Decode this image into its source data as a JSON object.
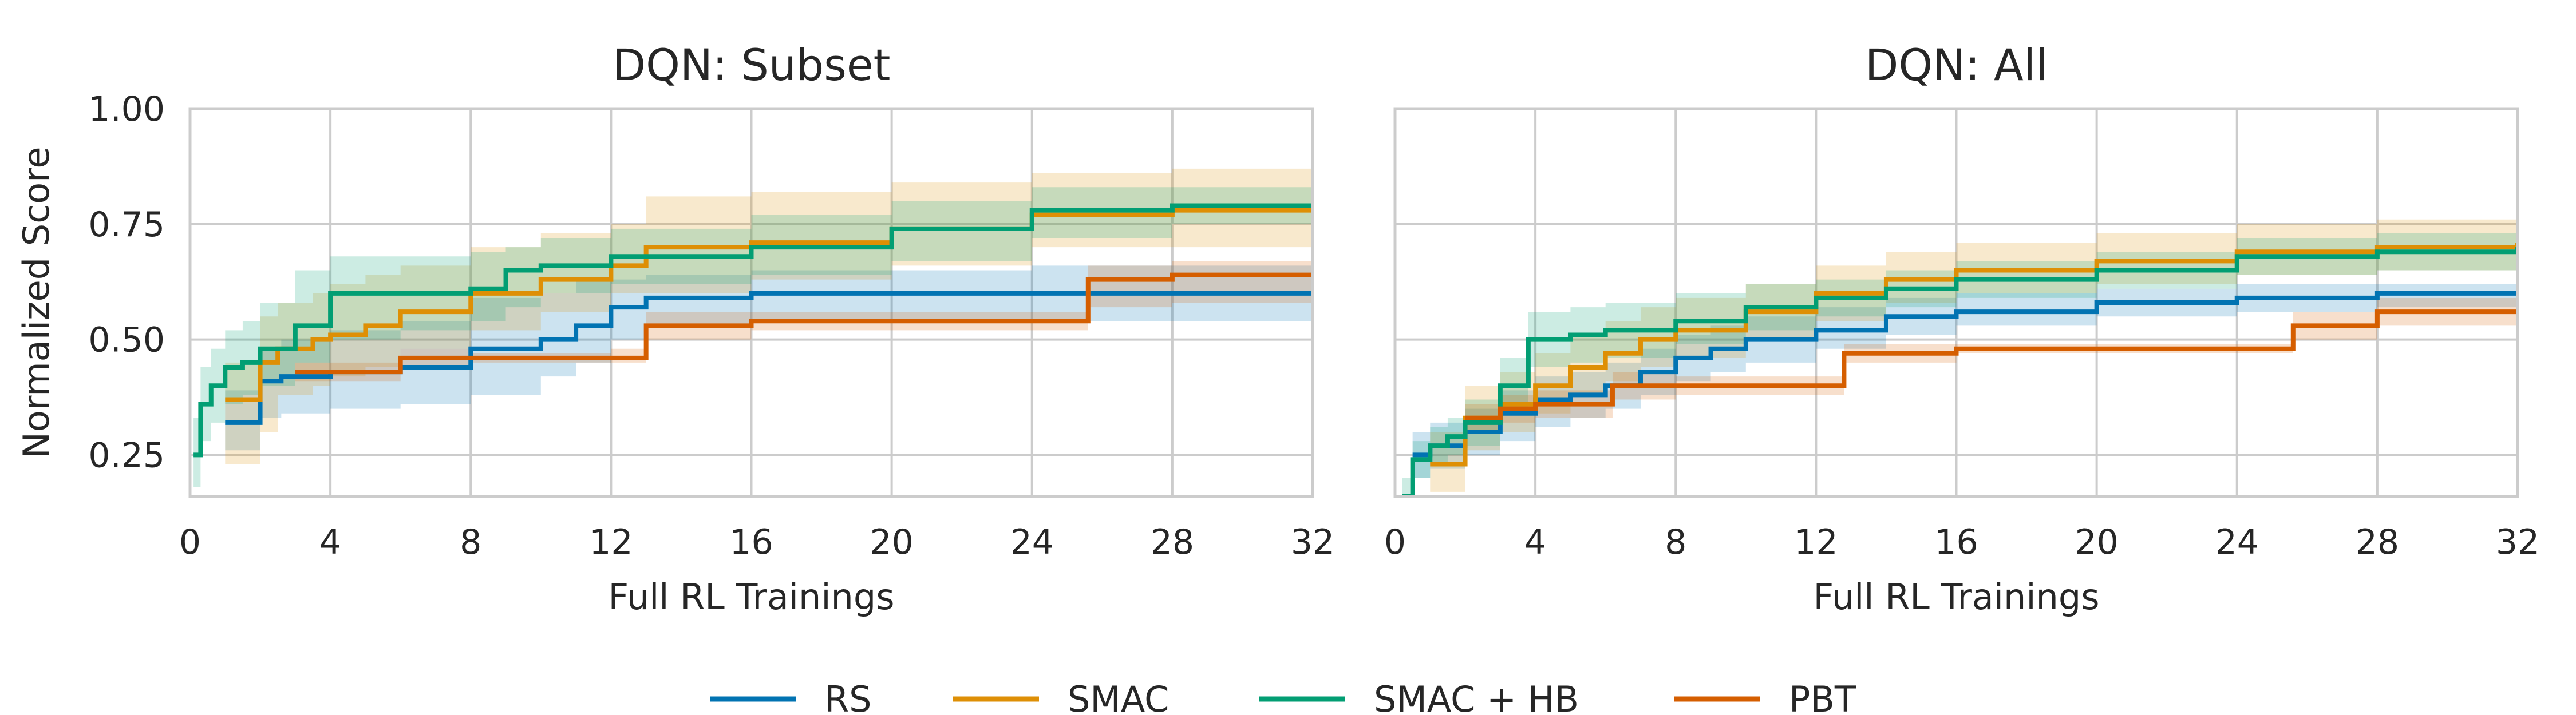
{
  "chart_data": [
    {
      "type": "line",
      "title": "DQN: Subset",
      "xlabel": "Full RL Trainings",
      "ylabel": "Normalized Score",
      "xlim": [
        0,
        32
      ],
      "ylim": [
        0.16,
        1.0
      ],
      "xticks": [
        "0",
        "4",
        "8",
        "12",
        "16",
        "20",
        "24",
        "28",
        "32"
      ],
      "yticks": [
        "0.25",
        "0.50",
        "0.75",
        "1.00"
      ],
      "grid": true,
      "series": [
        {
          "name": "RS",
          "color": "#0173b2",
          "x": [
            1,
            2,
            2.6,
            4,
            6,
            8,
            10,
            11,
            12,
            13,
            16,
            24,
            32
          ],
          "y": [
            0.32,
            0.41,
            0.42,
            0.43,
            0.44,
            0.48,
            0.5,
            0.53,
            0.57,
            0.59,
            0.6,
            0.6,
            0.6
          ],
          "lower": [
            0.26,
            0.33,
            0.34,
            0.35,
            0.36,
            0.38,
            0.42,
            0.45,
            0.5,
            0.53,
            0.54,
            0.54,
            0.55
          ],
          "upper": [
            0.39,
            0.48,
            0.5,
            0.52,
            0.54,
            0.59,
            0.6,
            0.63,
            0.63,
            0.64,
            0.65,
            0.66,
            0.66
          ]
        },
        {
          "name": "SMAC",
          "color": "#de8f05",
          "x": [
            1,
            2,
            2.5,
            3.5,
            4,
            5,
            6,
            8,
            10,
            12,
            13,
            16,
            20,
            24,
            28,
            32
          ],
          "y": [
            0.37,
            0.45,
            0.48,
            0.5,
            0.51,
            0.53,
            0.56,
            0.6,
            0.63,
            0.66,
            0.7,
            0.71,
            0.74,
            0.77,
            0.78,
            0.79
          ],
          "lower": [
            0.23,
            0.3,
            0.38,
            0.4,
            0.42,
            0.44,
            0.48,
            0.52,
            0.56,
            0.6,
            0.6,
            0.63,
            0.66,
            0.7,
            0.7,
            0.7
          ],
          "upper": [
            0.45,
            0.55,
            0.58,
            0.6,
            0.62,
            0.64,
            0.66,
            0.7,
            0.73,
            0.75,
            0.81,
            0.82,
            0.84,
            0.86,
            0.87,
            0.88
          ]
        },
        {
          "name": "SMAC + HB",
          "color": "#029e73",
          "x": [
            0.1,
            0.3,
            0.6,
            1,
            1.5,
            2,
            3,
            4,
            6,
            8,
            9,
            10,
            12,
            16,
            20,
            24,
            28,
            32
          ],
          "y": [
            0.25,
            0.36,
            0.4,
            0.44,
            0.45,
            0.48,
            0.53,
            0.6,
            0.6,
            0.61,
            0.65,
            0.66,
            0.68,
            0.7,
            0.74,
            0.78,
            0.79,
            0.79
          ],
          "lower": [
            0.18,
            0.28,
            0.32,
            0.36,
            0.38,
            0.4,
            0.45,
            0.5,
            0.52,
            0.54,
            0.57,
            0.6,
            0.62,
            0.64,
            0.67,
            0.72,
            0.75,
            0.75
          ],
          "upper": [
            0.33,
            0.44,
            0.48,
            0.52,
            0.54,
            0.58,
            0.65,
            0.68,
            0.68,
            0.69,
            0.7,
            0.72,
            0.74,
            0.77,
            0.8,
            0.83,
            0.83,
            0.84
          ]
        },
        {
          "name": "PBT",
          "color": "#d55e00",
          "x": [
            3,
            6,
            8,
            12,
            13,
            16,
            25.6,
            28,
            32
          ],
          "y": [
            0.43,
            0.46,
            0.46,
            0.46,
            0.53,
            0.54,
            0.63,
            0.64,
            0.64
          ],
          "lower": [
            0.41,
            0.44,
            0.45,
            0.45,
            0.5,
            0.52,
            0.57,
            0.58,
            0.58
          ],
          "upper": [
            0.45,
            0.48,
            0.47,
            0.48,
            0.56,
            0.56,
            0.66,
            0.67,
            0.67
          ]
        }
      ]
    },
    {
      "type": "line",
      "title": "DQN: All",
      "xlabel": "Full RL Trainings",
      "ylabel": "",
      "xlim": [
        0,
        32
      ],
      "ylim": [
        0.16,
        1.0
      ],
      "xticks": [
        "0",
        "4",
        "8",
        "12",
        "16",
        "20",
        "24",
        "28",
        "32"
      ],
      "yticks": [],
      "grid": true,
      "series": [
        {
          "name": "RS",
          "color": "#0173b2",
          "x": [
            0.5,
            1,
            2,
            3,
            4,
            5,
            6,
            7,
            8,
            9,
            10,
            12,
            14,
            16,
            20,
            24,
            28,
            32
          ],
          "y": [
            0.25,
            0.27,
            0.3,
            0.34,
            0.37,
            0.38,
            0.4,
            0.43,
            0.46,
            0.48,
            0.5,
            0.52,
            0.55,
            0.56,
            0.58,
            0.59,
            0.6,
            0.6
          ],
          "lower": [
            0.2,
            0.22,
            0.25,
            0.28,
            0.31,
            0.33,
            0.35,
            0.38,
            0.41,
            0.43,
            0.45,
            0.48,
            0.51,
            0.53,
            0.55,
            0.56,
            0.57,
            0.58
          ],
          "upper": [
            0.3,
            0.32,
            0.35,
            0.39,
            0.42,
            0.43,
            0.45,
            0.48,
            0.51,
            0.53,
            0.55,
            0.57,
            0.59,
            0.6,
            0.61,
            0.62,
            0.62,
            0.63
          ]
        },
        {
          "name": "SMAC",
          "color": "#de8f05",
          "x": [
            1,
            2,
            3,
            4,
            5,
            6,
            7,
            8,
            10,
            12,
            14,
            16,
            20,
            24,
            28,
            32
          ],
          "y": [
            0.23,
            0.33,
            0.36,
            0.4,
            0.44,
            0.47,
            0.5,
            0.52,
            0.56,
            0.6,
            0.63,
            0.65,
            0.67,
            0.69,
            0.7,
            0.71
          ],
          "lower": [
            0.17,
            0.26,
            0.3,
            0.34,
            0.38,
            0.41,
            0.44,
            0.46,
            0.5,
            0.54,
            0.58,
            0.6,
            0.62,
            0.64,
            0.65,
            0.66
          ],
          "upper": [
            0.3,
            0.4,
            0.43,
            0.47,
            0.51,
            0.54,
            0.57,
            0.59,
            0.62,
            0.66,
            0.69,
            0.71,
            0.73,
            0.75,
            0.76,
            0.77
          ]
        },
        {
          "name": "SMAC + HB",
          "color": "#029e73",
          "x": [
            0.2,
            0.5,
            1,
            1.5,
            2,
            3,
            3.8,
            5,
            6,
            8,
            10,
            12,
            14,
            16,
            20,
            24,
            28,
            32
          ],
          "y": [
            0.16,
            0.24,
            0.27,
            0.29,
            0.32,
            0.4,
            0.5,
            0.51,
            0.52,
            0.54,
            0.57,
            0.59,
            0.61,
            0.63,
            0.65,
            0.68,
            0.69,
            0.7
          ],
          "lower": [
            0.12,
            0.2,
            0.23,
            0.25,
            0.27,
            0.34,
            0.44,
            0.45,
            0.46,
            0.49,
            0.52,
            0.55,
            0.57,
            0.59,
            0.61,
            0.64,
            0.65,
            0.66
          ],
          "upper": [
            0.2,
            0.28,
            0.31,
            0.33,
            0.37,
            0.46,
            0.56,
            0.57,
            0.58,
            0.6,
            0.62,
            0.63,
            0.65,
            0.67,
            0.69,
            0.72,
            0.73,
            0.74
          ]
        },
        {
          "name": "PBT",
          "color": "#d55e00",
          "x": [
            2,
            3,
            4,
            6.2,
            8,
            12.8,
            16,
            25.6,
            28,
            32
          ],
          "y": [
            0.33,
            0.35,
            0.36,
            0.4,
            0.4,
            0.47,
            0.48,
            0.53,
            0.56,
            0.56
          ],
          "lower": [
            0.3,
            0.32,
            0.33,
            0.37,
            0.38,
            0.45,
            0.47,
            0.5,
            0.53,
            0.53
          ],
          "upper": [
            0.36,
            0.38,
            0.39,
            0.43,
            0.42,
            0.49,
            0.49,
            0.56,
            0.59,
            0.59
          ]
        }
      ]
    }
  ],
  "legend": {
    "items": [
      {
        "label": "RS",
        "color": "#0173b2"
      },
      {
        "label": "SMAC",
        "color": "#de8f05"
      },
      {
        "label": "SMAC + HB",
        "color": "#029e73"
      },
      {
        "label": "PBT",
        "color": "#d55e00"
      }
    ]
  }
}
